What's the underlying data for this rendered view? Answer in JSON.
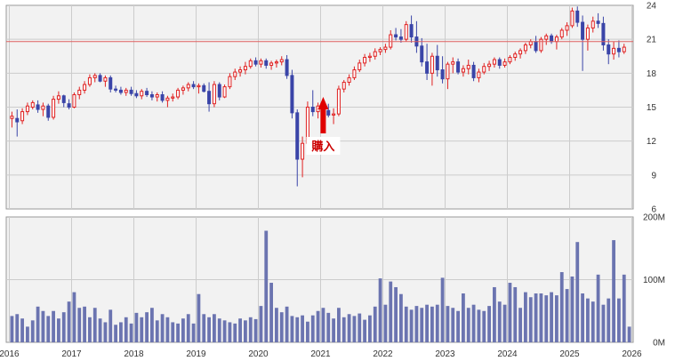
{
  "chart_data": [
    {
      "type": "candlestick",
      "title": "",
      "x_period": "monthly",
      "x_ticks": [
        "2016",
        "2017",
        "2018",
        "2019",
        "2020",
        "2021",
        "2022",
        "2023",
        "2024",
        "2025",
        "2026"
      ],
      "y_ticks": [
        "6",
        "9",
        "12",
        "15",
        "18",
        "21",
        "24"
      ],
      "ylim": [
        6,
        24
      ],
      "grid": true,
      "colors": {
        "up": "#e02020",
        "down": "#3a45a8",
        "reference_line": "#e06060"
      },
      "reference_line": 20.8,
      "annotation": {
        "text": "購入",
        "date": "2021-01",
        "arrow": "up",
        "arrow_color": "#e00000"
      },
      "candles": [
        {
          "o": 14.0,
          "h": 14.6,
          "l": 13.2,
          "c": 14.2
        },
        {
          "o": 14.0,
          "h": 14.8,
          "l": 12.4,
          "c": 13.7
        },
        {
          "o": 13.8,
          "h": 14.9,
          "l": 13.5,
          "c": 14.6
        },
        {
          "o": 14.6,
          "h": 15.4,
          "l": 14.3,
          "c": 15.1
        },
        {
          "o": 15.0,
          "h": 15.6,
          "l": 14.8,
          "c": 15.4
        },
        {
          "o": 15.2,
          "h": 15.6,
          "l": 14.5,
          "c": 14.8
        },
        {
          "o": 14.8,
          "h": 15.4,
          "l": 14.2,
          "c": 15.1
        },
        {
          "o": 15.1,
          "h": 15.3,
          "l": 13.8,
          "c": 14.1
        },
        {
          "o": 14.1,
          "h": 16.0,
          "l": 13.9,
          "c": 15.7
        },
        {
          "o": 15.7,
          "h": 16.4,
          "l": 15.3,
          "c": 16.0
        },
        {
          "o": 16.0,
          "h": 16.1,
          "l": 15.0,
          "c": 15.4
        },
        {
          "o": 15.3,
          "h": 15.7,
          "l": 14.8,
          "c": 15.0
        },
        {
          "o": 15.0,
          "h": 16.3,
          "l": 14.9,
          "c": 16.1
        },
        {
          "o": 16.1,
          "h": 16.8,
          "l": 15.7,
          "c": 16.5
        },
        {
          "o": 16.5,
          "h": 17.3,
          "l": 16.2,
          "c": 17.0
        },
        {
          "o": 17.0,
          "h": 17.9,
          "l": 16.8,
          "c": 17.6
        },
        {
          "o": 17.6,
          "h": 18.0,
          "l": 17.2,
          "c": 17.8
        },
        {
          "o": 17.8,
          "h": 18.0,
          "l": 17.2,
          "c": 17.3
        },
        {
          "o": 17.3,
          "h": 17.8,
          "l": 16.8,
          "c": 17.6
        },
        {
          "o": 17.6,
          "h": 17.8,
          "l": 16.3,
          "c": 16.6
        },
        {
          "o": 16.6,
          "h": 16.9,
          "l": 16.3,
          "c": 16.5
        },
        {
          "o": 16.5,
          "h": 16.8,
          "l": 16.1,
          "c": 16.3
        },
        {
          "o": 16.3,
          "h": 16.7,
          "l": 16.0,
          "c": 16.5
        },
        {
          "o": 16.5,
          "h": 16.8,
          "l": 16.0,
          "c": 16.2
        },
        {
          "o": 16.2,
          "h": 16.5,
          "l": 15.8,
          "c": 16.0
        },
        {
          "o": 16.0,
          "h": 16.6,
          "l": 15.7,
          "c": 16.4
        },
        {
          "o": 16.4,
          "h": 16.7,
          "l": 15.9,
          "c": 16.1
        },
        {
          "o": 16.1,
          "h": 16.4,
          "l": 15.6,
          "c": 15.9
        },
        {
          "o": 15.9,
          "h": 16.3,
          "l": 15.5,
          "c": 16.1
        },
        {
          "o": 16.1,
          "h": 16.4,
          "l": 15.4,
          "c": 15.6
        },
        {
          "o": 15.6,
          "h": 16.0,
          "l": 15.0,
          "c": 15.8
        },
        {
          "o": 15.8,
          "h": 16.2,
          "l": 15.5,
          "c": 15.9
        },
        {
          "o": 15.9,
          "h": 16.7,
          "l": 15.7,
          "c": 16.5
        },
        {
          "o": 16.5,
          "h": 16.9,
          "l": 16.1,
          "c": 16.7
        },
        {
          "o": 16.7,
          "h": 17.2,
          "l": 16.4,
          "c": 17.0
        },
        {
          "o": 17.0,
          "h": 17.3,
          "l": 16.6,
          "c": 16.8
        },
        {
          "o": 16.8,
          "h": 17.1,
          "l": 16.2,
          "c": 16.9
        },
        {
          "o": 16.9,
          "h": 17.1,
          "l": 16.3,
          "c": 16.4
        },
        {
          "o": 16.4,
          "h": 17.2,
          "l": 14.6,
          "c": 15.3
        },
        {
          "o": 15.3,
          "h": 17.3,
          "l": 15.0,
          "c": 17.0
        },
        {
          "o": 17.0,
          "h": 17.2,
          "l": 15.6,
          "c": 15.9
        },
        {
          "o": 15.9,
          "h": 17.0,
          "l": 15.8,
          "c": 16.8
        },
        {
          "o": 16.8,
          "h": 18.0,
          "l": 16.6,
          "c": 17.7
        },
        {
          "o": 17.7,
          "h": 18.4,
          "l": 17.4,
          "c": 18.1
        },
        {
          "o": 18.1,
          "h": 18.6,
          "l": 17.7,
          "c": 18.3
        },
        {
          "o": 18.3,
          "h": 19.0,
          "l": 17.9,
          "c": 18.6
        },
        {
          "o": 18.6,
          "h": 19.3,
          "l": 18.4,
          "c": 19.1
        },
        {
          "o": 19.1,
          "h": 19.4,
          "l": 18.6,
          "c": 18.8
        },
        {
          "o": 18.8,
          "h": 19.3,
          "l": 18.5,
          "c": 19.1
        },
        {
          "o": 19.1,
          "h": 19.3,
          "l": 18.4,
          "c": 18.7
        },
        {
          "o": 18.7,
          "h": 19.1,
          "l": 18.3,
          "c": 18.9
        },
        {
          "o": 18.9,
          "h": 19.2,
          "l": 18.5,
          "c": 19.0
        },
        {
          "o": 19.0,
          "h": 19.5,
          "l": 18.7,
          "c": 19.2
        },
        {
          "o": 19.2,
          "h": 19.6,
          "l": 17.5,
          "c": 17.8
        },
        {
          "o": 17.8,
          "h": 18.3,
          "l": 14.0,
          "c": 14.5
        },
        {
          "o": 14.5,
          "h": 14.8,
          "l": 8.0,
          "c": 10.4
        },
        {
          "o": 10.4,
          "h": 12.4,
          "l": 8.8,
          "c": 11.8
        },
        {
          "o": 11.8,
          "h": 15.5,
          "l": 11.4,
          "c": 15.0
        },
        {
          "o": 15.0,
          "h": 16.5,
          "l": 14.2,
          "c": 14.6
        },
        {
          "o": 14.6,
          "h": 15.4,
          "l": 14.0,
          "c": 15.1
        },
        {
          "o": 15.1,
          "h": 15.5,
          "l": 14.3,
          "c": 14.7
        },
        {
          "o": 14.7,
          "h": 15.3,
          "l": 14.1,
          "c": 14.3
        },
        {
          "o": 14.3,
          "h": 14.9,
          "l": 13.5,
          "c": 14.4
        },
        {
          "o": 14.4,
          "h": 16.9,
          "l": 14.2,
          "c": 16.6
        },
        {
          "o": 16.6,
          "h": 17.4,
          "l": 16.3,
          "c": 17.2
        },
        {
          "o": 17.2,
          "h": 17.9,
          "l": 16.9,
          "c": 17.6
        },
        {
          "o": 17.6,
          "h": 18.6,
          "l": 17.4,
          "c": 18.3
        },
        {
          "o": 18.3,
          "h": 19.2,
          "l": 18.1,
          "c": 18.9
        },
        {
          "o": 18.9,
          "h": 19.7,
          "l": 18.6,
          "c": 19.4
        },
        {
          "o": 19.4,
          "h": 19.8,
          "l": 19.0,
          "c": 19.5
        },
        {
          "o": 19.5,
          "h": 20.2,
          "l": 19.2,
          "c": 19.9
        },
        {
          "o": 19.9,
          "h": 20.3,
          "l": 19.6,
          "c": 20.1
        },
        {
          "o": 20.1,
          "h": 20.6,
          "l": 19.8,
          "c": 20.3
        },
        {
          "o": 20.3,
          "h": 21.8,
          "l": 20.1,
          "c": 21.4
        },
        {
          "o": 21.4,
          "h": 22.0,
          "l": 20.9,
          "c": 21.2
        },
        {
          "o": 21.2,
          "h": 21.9,
          "l": 20.7,
          "c": 21.0
        },
        {
          "o": 21.0,
          "h": 22.6,
          "l": 20.8,
          "c": 22.3
        },
        {
          "o": 22.3,
          "h": 23.1,
          "l": 20.7,
          "c": 21.2
        },
        {
          "o": 21.2,
          "h": 22.6,
          "l": 19.8,
          "c": 20.4
        },
        {
          "o": 20.4,
          "h": 21.1,
          "l": 18.6,
          "c": 19.0
        },
        {
          "o": 19.0,
          "h": 20.6,
          "l": 17.4,
          "c": 18.0
        },
        {
          "o": 18.0,
          "h": 19.8,
          "l": 16.9,
          "c": 19.5
        },
        {
          "o": 19.5,
          "h": 20.5,
          "l": 17.7,
          "c": 18.3
        },
        {
          "o": 18.3,
          "h": 19.5,
          "l": 17.1,
          "c": 17.5
        },
        {
          "o": 17.5,
          "h": 19.0,
          "l": 16.6,
          "c": 18.8
        },
        {
          "o": 18.8,
          "h": 19.4,
          "l": 18.0,
          "c": 19.0
        },
        {
          "o": 19.0,
          "h": 19.3,
          "l": 17.9,
          "c": 18.1
        },
        {
          "o": 18.1,
          "h": 18.7,
          "l": 17.7,
          "c": 18.4
        },
        {
          "o": 18.4,
          "h": 19.2,
          "l": 17.9,
          "c": 18.7
        },
        {
          "o": 18.7,
          "h": 19.0,
          "l": 17.3,
          "c": 17.6
        },
        {
          "o": 17.6,
          "h": 18.4,
          "l": 17.2,
          "c": 18.1
        },
        {
          "o": 18.1,
          "h": 18.9,
          "l": 17.9,
          "c": 18.6
        },
        {
          "o": 18.6,
          "h": 19.1,
          "l": 18.2,
          "c": 18.8
        },
        {
          "o": 18.8,
          "h": 19.4,
          "l": 18.5,
          "c": 19.2
        },
        {
          "o": 19.2,
          "h": 19.4,
          "l": 18.4,
          "c": 18.7
        },
        {
          "o": 18.7,
          "h": 19.3,
          "l": 18.5,
          "c": 19.0
        },
        {
          "o": 19.0,
          "h": 19.6,
          "l": 18.8,
          "c": 19.4
        },
        {
          "o": 19.4,
          "h": 19.9,
          "l": 19.1,
          "c": 19.7
        },
        {
          "o": 19.7,
          "h": 20.2,
          "l": 19.3,
          "c": 20.0
        },
        {
          "o": 20.0,
          "h": 20.7,
          "l": 19.7,
          "c": 20.5
        },
        {
          "o": 20.5,
          "h": 21.0,
          "l": 20.2,
          "c": 20.8
        },
        {
          "o": 20.8,
          "h": 21.3,
          "l": 19.8,
          "c": 20.0
        },
        {
          "o": 20.0,
          "h": 21.2,
          "l": 19.8,
          "c": 21.0
        },
        {
          "o": 21.0,
          "h": 21.5,
          "l": 20.5,
          "c": 21.3
        },
        {
          "o": 21.3,
          "h": 21.5,
          "l": 20.6,
          "c": 20.8
        },
        {
          "o": 20.8,
          "h": 21.4,
          "l": 20.1,
          "c": 21.2
        },
        {
          "o": 21.2,
          "h": 22.0,
          "l": 21.0,
          "c": 21.8
        },
        {
          "o": 21.8,
          "h": 22.5,
          "l": 21.3,
          "c": 22.2
        },
        {
          "o": 22.2,
          "h": 23.8,
          "l": 22.0,
          "c": 23.5
        },
        {
          "o": 23.5,
          "h": 23.9,
          "l": 22.1,
          "c": 22.5
        },
        {
          "o": 22.5,
          "h": 23.1,
          "l": 18.2,
          "c": 21.0
        },
        {
          "o": 21.0,
          "h": 22.3,
          "l": 20.0,
          "c": 22.0
        },
        {
          "o": 22.0,
          "h": 23.0,
          "l": 21.6,
          "c": 22.6
        },
        {
          "o": 22.6,
          "h": 23.3,
          "l": 22.0,
          "c": 22.4
        },
        {
          "o": 22.4,
          "h": 23.0,
          "l": 20.0,
          "c": 20.5
        },
        {
          "o": 20.5,
          "h": 21.0,
          "l": 18.8,
          "c": 19.7
        },
        {
          "o": 19.7,
          "h": 20.8,
          "l": 19.2,
          "c": 20.2
        },
        {
          "o": 20.2,
          "h": 20.9,
          "l": 19.4,
          "c": 19.9
        },
        {
          "o": 19.9,
          "h": 20.6,
          "l": 19.7,
          "c": 20.3
        }
      ]
    },
    {
      "type": "bar",
      "title": "",
      "x_period": "monthly",
      "x_ticks": [
        "2016",
        "2017",
        "2018",
        "2019",
        "2020",
        "2021",
        "2022",
        "2023",
        "2024",
        "2025",
        "2026"
      ],
      "y_ticks": [
        "0M",
        "100M",
        "200M"
      ],
      "ylim": [
        0,
        200
      ],
      "grid": true,
      "colors": {
        "bar": "#6b74b0"
      },
      "values": [
        42,
        45,
        38,
        25,
        35,
        57,
        50,
        42,
        50,
        38,
        48,
        65,
        80,
        55,
        57,
        40,
        55,
        38,
        32,
        52,
        28,
        32,
        40,
        30,
        47,
        40,
        48,
        55,
        35,
        45,
        40,
        32,
        30,
        38,
        45,
        30,
        77,
        45,
        40,
        45,
        38,
        35,
        32,
        30,
        38,
        35,
        40,
        37,
        58,
        178,
        95,
        55,
        48,
        57,
        42,
        40,
        43,
        33,
        43,
        50,
        55,
        47,
        38,
        55,
        40,
        45,
        42,
        46,
        36,
        43,
        57,
        102,
        60,
        97,
        88,
        77,
        57,
        52,
        58,
        55,
        60,
        57,
        60,
        103,
        58,
        55,
        50,
        78,
        55,
        60,
        52,
        50,
        58,
        88,
        65,
        60,
        95,
        88,
        55,
        80,
        72,
        78,
        78,
        75,
        80,
        75,
        112,
        85,
        105,
        160,
        78,
        70,
        65,
        108,
        60,
        70,
        163,
        70,
        108,
        25
      ]
    }
  ]
}
